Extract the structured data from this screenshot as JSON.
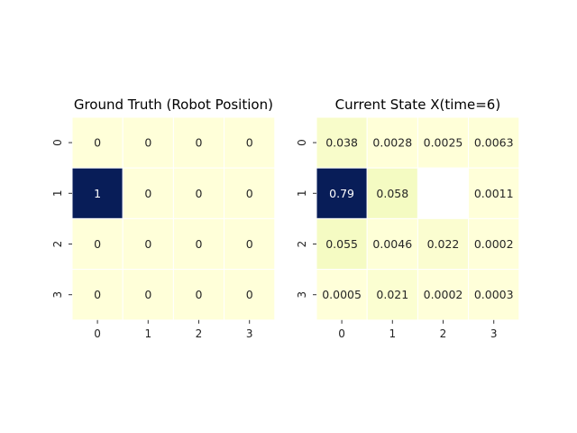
{
  "chart_data": [
    {
      "type": "heatmap",
      "title": "Ground Truth (Robot Position)",
      "x_ticks": [
        "0",
        "1",
        "2",
        "3"
      ],
      "y_ticks": [
        "0",
        "1",
        "2",
        "3"
      ],
      "values": [
        [
          0,
          0,
          0,
          0
        ],
        [
          1,
          0,
          0,
          0
        ],
        [
          0,
          0,
          0,
          0
        ],
        [
          0,
          0,
          0,
          0
        ]
      ],
      "labels": [
        [
          "0",
          "0",
          "0",
          "0"
        ],
        [
          "1",
          "0",
          "0",
          "0"
        ],
        [
          "0",
          "0",
          "0",
          "0"
        ],
        [
          "0",
          "0",
          "0",
          "0"
        ]
      ],
      "colormap": "YlGnBu",
      "grid": false
    },
    {
      "type": "heatmap",
      "title": "Current State X(time=6)",
      "x_ticks": [
        "0",
        "1",
        "2",
        "3"
      ],
      "y_ticks": [
        "0",
        "1",
        "2",
        "3"
      ],
      "values": [
        [
          0.038,
          0.0028,
          0.0025,
          0.0063
        ],
        [
          0.79,
          0.058,
          null,
          0.0011
        ],
        [
          0.055,
          0.0046,
          0.022,
          0.0002
        ],
        [
          0.0005,
          0.021,
          0.0002,
          0.0003
        ]
      ],
      "labels": [
        [
          "0.038",
          "0.0028",
          "0.0025",
          "0.0063"
        ],
        [
          "0.79",
          "0.058",
          "",
          "0.0011"
        ],
        [
          "0.055",
          "0.0046",
          "0.022",
          "0.0002"
        ],
        [
          "0.0005",
          "0.021",
          "0.0002",
          "0.0003"
        ]
      ],
      "colormap": "YlGnBu",
      "grid": false
    }
  ]
}
